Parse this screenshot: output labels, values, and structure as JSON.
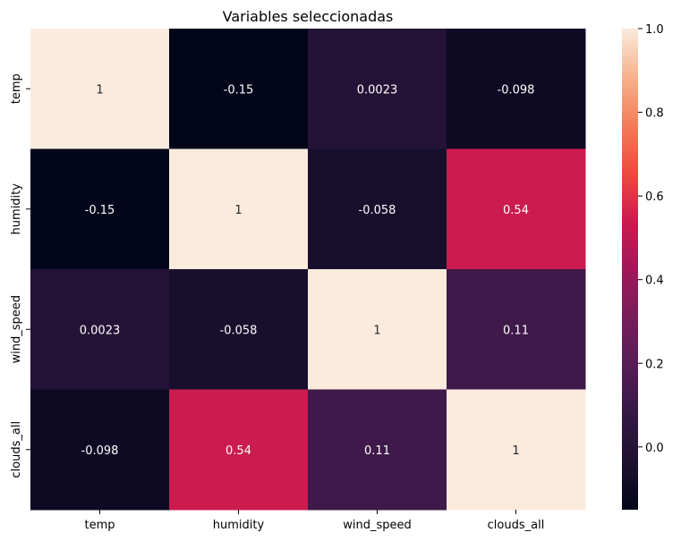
{
  "chart_data": {
    "type": "heatmap",
    "title": "Variables seleccionadas",
    "xlabel": "",
    "ylabel": "",
    "x_categories": [
      "temp",
      "humidity",
      "wind_speed",
      "clouds_all"
    ],
    "y_categories": [
      "temp",
      "humidity",
      "wind_speed",
      "clouds_all"
    ],
    "values": [
      [
        1,
        -0.15,
        0.0023,
        -0.098
      ],
      [
        -0.15,
        1,
        -0.058,
        0.54
      ],
      [
        0.0023,
        -0.058,
        1,
        0.11
      ],
      [
        -0.098,
        0.54,
        0.11,
        1
      ]
    ],
    "cell_labels": [
      [
        "1",
        "-0.15",
        "0.0023",
        "-0.098"
      ],
      [
        "-0.15",
        "1",
        "-0.058",
        "0.54"
      ],
      [
        "0.0023",
        "-0.058",
        "1",
        "0.11"
      ],
      [
        "-0.098",
        "0.54",
        "0.11",
        "1"
      ]
    ],
    "colorbar": {
      "colormap": "rocket",
      "range": [
        -0.15,
        1
      ],
      "ticks": [
        0.0,
        0.2,
        0.4,
        0.6,
        0.8,
        1.0
      ],
      "tick_labels": [
        "0.0",
        "0.2",
        "0.4",
        "0.6",
        "0.8",
        "1.0"
      ]
    },
    "grid": false
  }
}
